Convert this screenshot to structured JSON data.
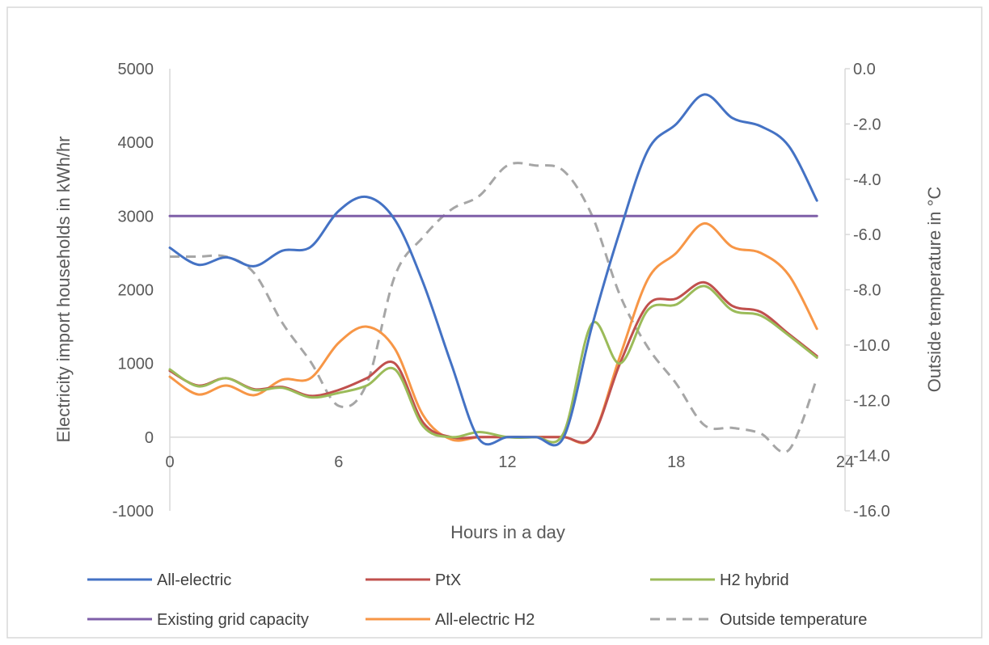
{
  "chart_data": {
    "type": "line",
    "xlabel": "Hours in a day",
    "ylabel": "Electricity import households in kWh/hr",
    "y2label": "Outside temperature in °C",
    "xlim": [
      0,
      24
    ],
    "ylim": [
      -1000,
      5000
    ],
    "y2lim": [
      -16,
      0
    ],
    "x_ticks": [
      "0",
      "6",
      "12",
      "18",
      "24"
    ],
    "y_ticks": [
      "-1000",
      "0",
      "1000",
      "2000",
      "3000",
      "4000",
      "5000"
    ],
    "y2_ticks": [
      "-16.0",
      "-14.0",
      "-12.0",
      "-10.0",
      "-8.0",
      "-6.0",
      "-4.0",
      "-2.0",
      "0.0"
    ],
    "grid": false,
    "legend_position": "bottom",
    "x": [
      0,
      1,
      2,
      3,
      4,
      5,
      6,
      7,
      8,
      9,
      10,
      11,
      12,
      13,
      14,
      15,
      16,
      17,
      18,
      19,
      20,
      21,
      22,
      23
    ],
    "series": [
      {
        "name": "All-electric",
        "axis": "left",
        "color": "#4472C4",
        "dash": false,
        "values": [
          2570,
          2340,
          2440,
          2320,
          2530,
          2580,
          3070,
          3260,
          2950,
          2100,
          1000,
          -30,
          0,
          0,
          0,
          1500,
          2800,
          3900,
          4250,
          4650,
          4330,
          4220,
          3950,
          3210
        ]
      },
      {
        "name": "PtX",
        "axis": "left",
        "color": "#C0504D",
        "dash": false,
        "values": [
          900,
          700,
          800,
          650,
          680,
          560,
          640,
          800,
          1000,
          200,
          0,
          0,
          0,
          0,
          0,
          0,
          1000,
          1800,
          1880,
          2100,
          1780,
          1700,
          1400,
          1100
        ]
      },
      {
        "name": "H2 hybrid",
        "axis": "left",
        "color": "#9BBB59",
        "dash": false,
        "values": [
          920,
          690,
          800,
          640,
          670,
          540,
          600,
          700,
          920,
          150,
          0,
          70,
          0,
          0,
          60,
          1540,
          1000,
          1730,
          1800,
          2050,
          1720,
          1650,
          1380,
          1080
        ]
      },
      {
        "name": "Existing grid capacity",
        "axis": "left",
        "color": "#7F5FA8",
        "dash": false,
        "values": [
          3000,
          3000,
          3000,
          3000,
          3000,
          3000,
          3000,
          3000,
          3000,
          3000,
          3000,
          3000,
          3000,
          3000,
          3000,
          3000,
          3000,
          3000,
          3000,
          3000,
          3000,
          3000,
          3000,
          3000
        ]
      },
      {
        "name": "All-electric H2",
        "axis": "left",
        "color": "#F79646",
        "dash": false,
        "values": [
          820,
          580,
          700,
          570,
          780,
          800,
          1280,
          1500,
          1200,
          300,
          -30,
          0,
          0,
          0,
          0,
          0,
          1100,
          2150,
          2500,
          2900,
          2580,
          2500,
          2200,
          1470
        ]
      },
      {
        "name": "Outside temperature",
        "axis": "right",
        "color": "#A6A6A6",
        "dash": true,
        "values": [
          -6.8,
          -6.8,
          -6.8,
          -7.4,
          -9.2,
          -10.6,
          -12.2,
          -11.4,
          -7.5,
          -6.1,
          -5.1,
          -4.6,
          -3.5,
          -3.5,
          -3.7,
          -5.3,
          -8.2,
          -10.1,
          -11.4,
          -12.9,
          -13.0,
          -13.2,
          -13.8,
          -11.2
        ]
      }
    ]
  }
}
